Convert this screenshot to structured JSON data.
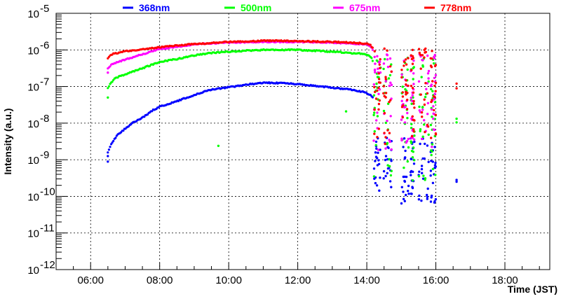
{
  "chart_data": {
    "type": "scatter",
    "title": "",
    "xlabel": "Time (JST)",
    "ylabel": "Intensity (a.u.)",
    "xlim": [
      5.0,
      19.3
    ],
    "ylim_log10": [
      -12,
      -5
    ],
    "yscale": "log",
    "grid": true,
    "legend_position": "top",
    "x_ticks": [
      6,
      8,
      10,
      12,
      14,
      16,
      18
    ],
    "x_tick_labels": [
      "06:00",
      "08:00",
      "10:00",
      "12:00",
      "14:00",
      "16:00",
      "18:00"
    ],
    "y_ticks": [
      -12,
      -11,
      -10,
      -9,
      -8,
      -7,
      -6,
      -5
    ],
    "y_tick_base": "10",
    "y_tick_exponents": [
      "-12",
      "-11",
      "-10",
      "-9",
      "-8",
      "-7",
      "-6",
      "-5"
    ],
    "series": [
      {
        "name": "368nm",
        "color": "#0000ff",
        "curve_x": [
          6.5,
          6.6,
          6.8,
          7.0,
          7.2,
          7.5,
          7.8,
          8.0,
          8.5,
          9.0,
          9.5,
          10.0,
          10.5,
          11.0,
          11.3,
          11.8,
          12.5,
          13.0,
          13.5,
          13.9,
          14.1,
          14.17
        ],
        "curve_log": [
          -8.8,
          -8.55,
          -8.3,
          -8.15,
          -8.0,
          -7.85,
          -7.65,
          -7.55,
          -7.4,
          -7.23,
          -7.08,
          -7.02,
          -6.95,
          -6.9,
          -6.9,
          -6.92,
          -6.98,
          -7.03,
          -7.08,
          -7.15,
          -7.22,
          -7.3
        ],
        "extra_points": [
          [
            6.5,
            -9.05
          ],
          [
            6.5,
            -8.9
          ]
        ],
        "burst_range_log": [
          -10.2,
          -8.4
        ]
      },
      {
        "name": "500nm",
        "color": "#00ff00",
        "curve_x": [
          6.5,
          6.55,
          6.7,
          6.9,
          7.2,
          7.5,
          8.0,
          8.5,
          9.0,
          9.5,
          10.0,
          10.5,
          11.0,
          11.5,
          12.0,
          12.5,
          13.0,
          13.5,
          14.0,
          14.12,
          14.17
        ],
        "curve_log": [
          -7.05,
          -6.95,
          -6.78,
          -6.7,
          -6.6,
          -6.5,
          -6.33,
          -6.25,
          -6.15,
          -6.08,
          -6.05,
          -6.02,
          -6.0,
          -6.0,
          -6.0,
          -6.02,
          -6.05,
          -6.08,
          -6.12,
          -6.2,
          -6.3
        ],
        "extra_points": [
          [
            6.5,
            -7.3
          ],
          [
            9.7,
            -8.62
          ],
          [
            13.4,
            -7.68
          ],
          [
            16.6,
            -7.88
          ],
          [
            16.6,
            -7.98
          ]
        ],
        "burst_range_log": [
          -9.6,
          -6.2
        ]
      },
      {
        "name": "675nm",
        "color": "#ff00ff",
        "curve_x": [
          6.5,
          6.6,
          6.8,
          7.0,
          7.5,
          8.0,
          8.5,
          9.0,
          9.5,
          10.0,
          11.0,
          12.0,
          12.5,
          13.0,
          13.5,
          14.0,
          14.12,
          14.17
        ],
        "curve_log": [
          -6.5,
          -6.4,
          -6.33,
          -6.26,
          -6.12,
          -5.97,
          -5.92,
          -5.85,
          -5.82,
          -5.8,
          -5.78,
          -5.78,
          -5.79,
          -5.8,
          -5.82,
          -5.85,
          -5.92,
          -6.0
        ],
        "extra_points": [
          [
            6.5,
            -6.62
          ]
        ],
        "burst_range_log": [
          -8.8,
          -6.1
        ]
      },
      {
        "name": "778nm",
        "color": "#ff0000",
        "curve_x": [
          6.5,
          6.6,
          6.8,
          7.0,
          7.5,
          8.0,
          8.5,
          9.0,
          9.5,
          10.0,
          10.5,
          11.0,
          11.5,
          12.0,
          12.5,
          13.0,
          13.5,
          14.0,
          14.12,
          14.17
        ],
        "curve_log": [
          -6.22,
          -6.12,
          -6.08,
          -6.04,
          -5.98,
          -5.93,
          -5.88,
          -5.84,
          -5.81,
          -5.78,
          -5.77,
          -5.75,
          -5.75,
          -5.76,
          -5.77,
          -5.78,
          -5.8,
          -5.83,
          -5.88,
          -5.95
        ],
        "extra_points": [
          [
            16.6,
            -6.92
          ],
          [
            16.6,
            -7.05
          ]
        ],
        "burst_range_log": [
          -8.6,
          -5.95
        ]
      }
    ],
    "burst_windows_x": [
      [
        14.2,
        14.4
      ],
      [
        14.48,
        14.72
      ],
      [
        15.0,
        15.22
      ],
      [
        15.27,
        15.38
      ],
      [
        15.5,
        15.8
      ],
      [
        15.85,
        16.0
      ]
    ],
    "late_points_368": [
      [
        16.6,
        -9.55
      ],
      [
        16.6,
        -9.6
      ]
    ]
  }
}
